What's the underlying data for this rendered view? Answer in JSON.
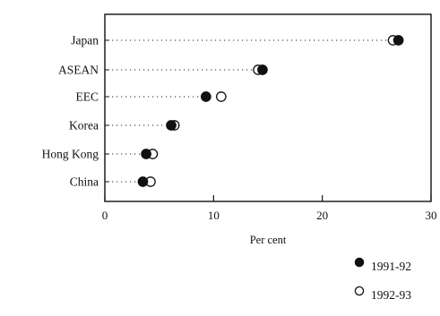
{
  "chart_data": {
    "type": "scatter",
    "title": "",
    "xlabel": "Per cent",
    "ylabel": "",
    "xlim": [
      0,
      30
    ],
    "x_ticks": [
      0,
      10,
      20,
      30
    ],
    "categories": [
      "Japan",
      "ASEAN",
      "EEC",
      "Korea",
      "Hong Kong",
      "China"
    ],
    "grid": false,
    "legend_position": "bottom-right",
    "series": [
      {
        "name": "1991-92",
        "marker": "filled-circle",
        "color": "#111111",
        "values": [
          27.0,
          14.5,
          9.3,
          6.1,
          3.8,
          3.5
        ]
      },
      {
        "name": "1992-93",
        "marker": "open-circle",
        "color": "#111111",
        "values": [
          26.5,
          14.1,
          10.7,
          6.4,
          4.4,
          4.2
        ]
      }
    ]
  }
}
